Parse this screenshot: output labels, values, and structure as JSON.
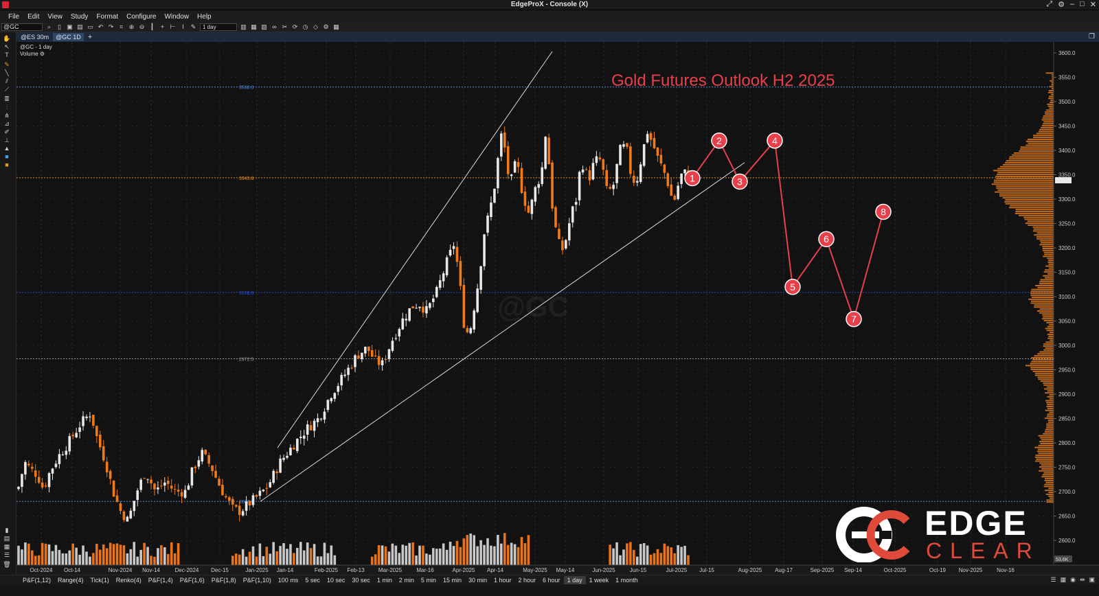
{
  "window": {
    "title": "EdgeProX - Console (X)"
  },
  "menu": [
    "File",
    "Edit",
    "View",
    "Study",
    "Format",
    "Configure",
    "Window",
    "Help"
  ],
  "toolbar": {
    "symbol": "@GC",
    "period": "1 day"
  },
  "tabs": [
    {
      "label": "@ES 30m",
      "active": false
    },
    {
      "label": "@GC 1D",
      "active": true
    }
  ],
  "chart_info": {
    "symbol_line": "@GC - 1 day",
    "study": "Volume"
  },
  "watermark": "@GC",
  "outlook_title": "Gold Futures Outlook H2 2025",
  "price_axis": {
    "labels": [
      "3600.0",
      "3550.0",
      "3500.0",
      "3450.0",
      "3400.0",
      "3350.0",
      "3300.0",
      "3250.0",
      "3200.0",
      "3150.0",
      "3100.0",
      "3050.0",
      "3000.0",
      "2950.0",
      "2900.0",
      "2850.0",
      "2800.0",
      "2750.0",
      "2700.0",
      "2650.0",
      "2600.0"
    ],
    "volume_label": "53.6K"
  },
  "date_axis": {
    "labels": [
      "Oct-2024",
      "Oct-14",
      "Nov-2024",
      "Nov-14",
      "Dec-2024",
      "Dec-15",
      "Jan-2025",
      "Jan-14",
      "Feb-2025",
      "Feb-13",
      "Mar-2025",
      "Mar-16",
      "Apr-2025",
      "Apr-14",
      "May-2025",
      "May-14",
      "Jun-2025",
      "Jun-15",
      "Jul-2025",
      "Jul-15",
      "Aug-2025",
      "Aug-17",
      "Sep-2025",
      "Sep-14",
      "Oct-2025",
      "Oct-19",
      "Nov-2025",
      "Nov-16"
    ]
  },
  "levels": [
    {
      "label": "3530.0",
      "color": "#5a8ad6"
    },
    {
      "label": "3343.8",
      "color": "#e0902a"
    },
    {
      "label": "3108.6",
      "color": "#3050d0"
    },
    {
      "label": "2972.5",
      "color": "#9a9a9a"
    },
    {
      "label": "2680.0",
      "color": "#5a8ad6"
    }
  ],
  "wave_points": [
    "1",
    "2",
    "3",
    "4",
    "5",
    "6",
    "7",
    "8"
  ],
  "timeframes": [
    "P&F(1,12)",
    "Range(4)",
    "Tick(1)",
    "Renko(4)",
    "P&F(1,4)",
    "P&F(1,6)",
    "P&F(1,8)",
    "P&F(1,10)",
    "100 ms",
    "5 sec",
    "10 sec",
    "30 sec",
    "1 min",
    "2 min",
    "5 min",
    "15 min",
    "30 min",
    "1 hour",
    "2 hour",
    "6 hour",
    "1 day",
    "1 week",
    "1 month"
  ],
  "active_timeframe": "1 day",
  "logo": {
    "line1": "EDGE",
    "line2": "CLEAR"
  },
  "colors": {
    "up": "#e8e8e8",
    "down": "#f07a1a",
    "wave": "#e8404a",
    "tab_bar": "#1d2a3c"
  }
}
